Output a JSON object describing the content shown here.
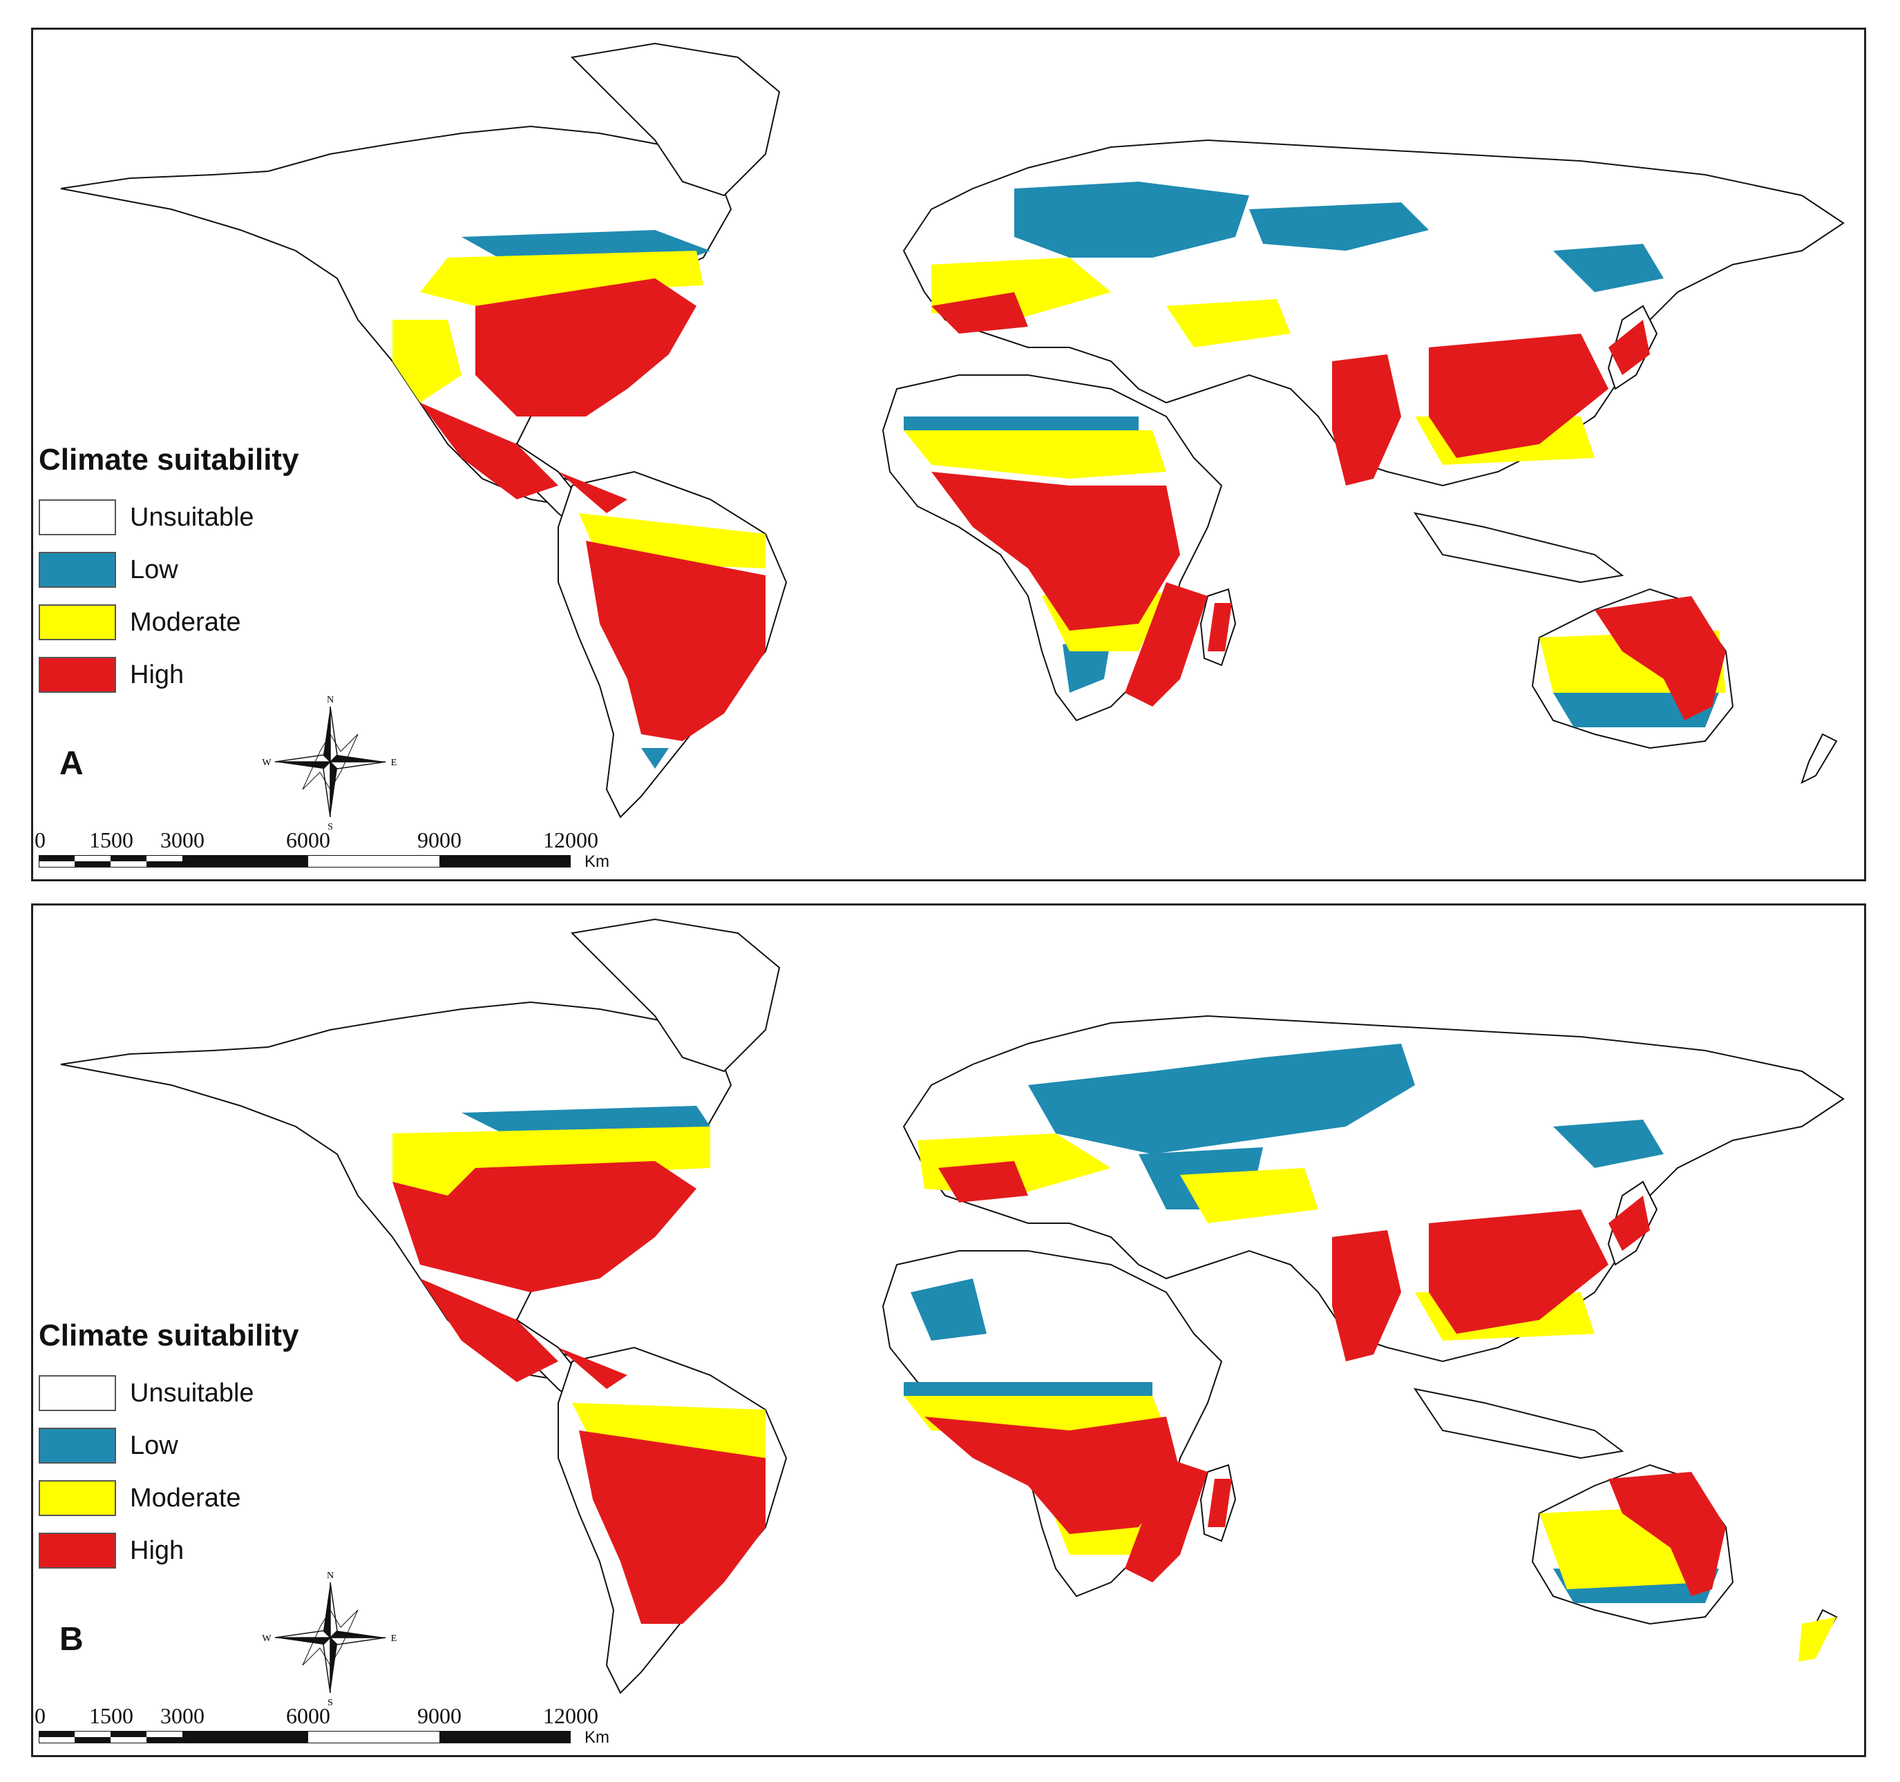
{
  "panels": [
    {
      "letter": "A",
      "legend": {
        "title": "Climate suitability",
        "items": [
          {
            "label": "Unsuitable",
            "color": "#ffffff"
          },
          {
            "label": "Low",
            "color": "#1f8bb1"
          },
          {
            "label": "Moderate",
            "color": "#ffff00"
          },
          {
            "label": "High",
            "color": "#e31a1c"
          }
        ]
      },
      "scale": {
        "ticks": [
          "0",
          "1500",
          "3000",
          "6000",
          "9000",
          "12000"
        ],
        "unit": "Km"
      },
      "compass": {
        "n": "N",
        "s": "S",
        "e": "E",
        "w": "W"
      }
    },
    {
      "letter": "B",
      "legend": {
        "title": "Climate suitability",
        "items": [
          {
            "label": "Unsuitable",
            "color": "#ffffff"
          },
          {
            "label": "Low",
            "color": "#1f8bb1"
          },
          {
            "label": "Moderate",
            "color": "#ffff00"
          },
          {
            "label": "High",
            "color": "#e31a1c"
          }
        ]
      },
      "scale": {
        "ticks": [
          "0",
          "1500",
          "3000",
          "6000",
          "9000",
          "12000"
        ],
        "unit": "Km"
      },
      "compass": {
        "n": "N",
        "s": "S",
        "e": "E",
        "w": "W"
      }
    }
  ]
}
